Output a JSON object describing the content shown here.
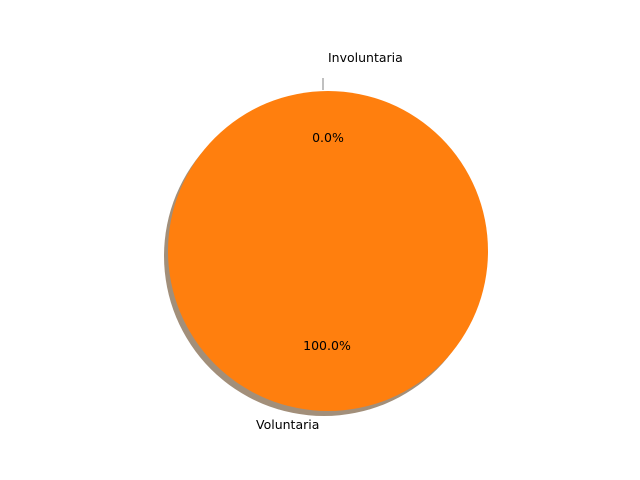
{
  "chart_data": {
    "type": "pie",
    "categories": [
      "Involuntaria",
      "Voluntaria"
    ],
    "values": [
      0.0,
      100.0
    ],
    "slice_labels": [
      "0.0%",
      "100.0%"
    ],
    "colors": [
      "#1f77b4",
      "#ff7f0e"
    ],
    "shadow": true,
    "shadow_color": "#a28f7a",
    "title": "",
    "legend": "none"
  }
}
